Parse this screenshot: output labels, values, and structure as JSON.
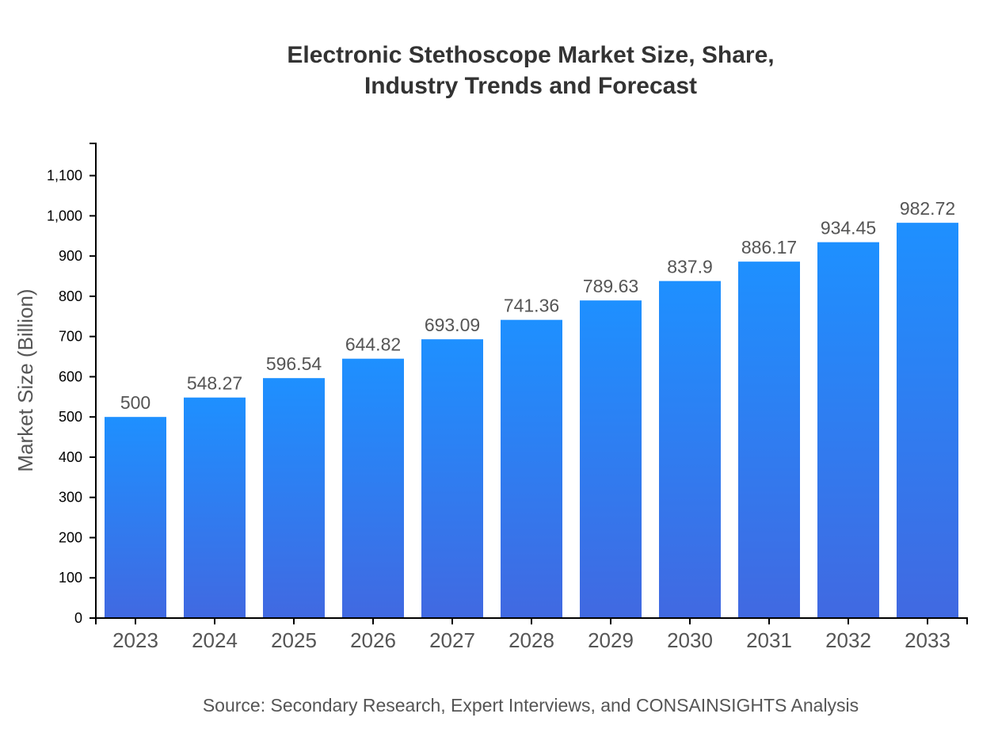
{
  "chart_data": {
    "type": "bar",
    "title_lines": [
      "Electronic Stethoscope Market Size, Share,",
      "Industry Trends and Forecast"
    ],
    "ylabel": "Market Size (Billion)",
    "xlabel": "",
    "source": "Source: Secondary Research, Expert Interviews, and CONSAINSIGHTS Analysis",
    "categories": [
      "2023",
      "2024",
      "2025",
      "2026",
      "2027",
      "2028",
      "2029",
      "2030",
      "2031",
      "2032",
      "2033"
    ],
    "values": [
      500,
      548.27,
      596.54,
      644.82,
      693.09,
      741.36,
      789.63,
      837.9,
      886.17,
      934.45,
      982.72
    ],
    "data_labels": [
      "500",
      "548.27",
      "596.54",
      "644.82",
      "693.09",
      "741.36",
      "789.63",
      "837.9",
      "886.17",
      "934.45",
      "982.72"
    ],
    "ylim": [
      0,
      1180
    ],
    "yticks": [
      0,
      100,
      200,
      300,
      400,
      500,
      600,
      700,
      800,
      900,
      1000,
      1100
    ],
    "ytick_labels": [
      "0",
      "100",
      "200",
      "300",
      "400",
      "500",
      "600",
      "700",
      "800",
      "900",
      "1,000",
      "1,100"
    ],
    "grid": false,
    "colors": {
      "bar_top": "#1e90ff",
      "bar_bottom": "#4169e1"
    }
  }
}
